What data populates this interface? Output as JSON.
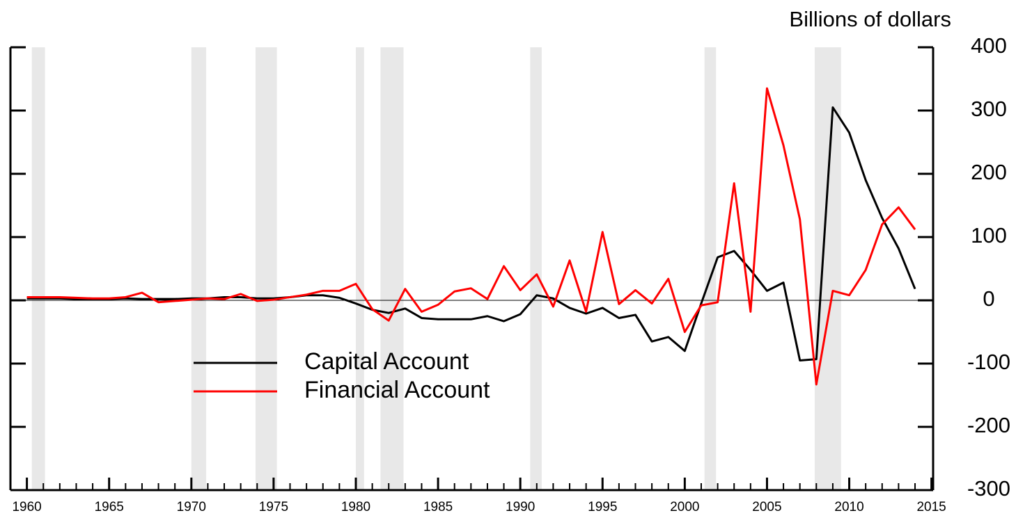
{
  "chart_data": {
    "type": "line",
    "axis_label": "Billions of dollars",
    "x": [
      1960,
      1961,
      1962,
      1963,
      1964,
      1965,
      1966,
      1967,
      1968,
      1969,
      1970,
      1971,
      1972,
      1973,
      1974,
      1975,
      1976,
      1977,
      1978,
      1979,
      1980,
      1981,
      1982,
      1983,
      1984,
      1985,
      1986,
      1987,
      1988,
      1989,
      1990,
      1991,
      1992,
      1993,
      1994,
      1995,
      1996,
      1997,
      1998,
      1999,
      2000,
      2001,
      2002,
      2003,
      2004,
      2005,
      2006,
      2007,
      2008,
      2009,
      2010,
      2011,
      2012,
      2013,
      2014
    ],
    "series": [
      {
        "name": "Capital Account",
        "color": "#000000",
        "values": [
          3,
          3,
          3,
          2,
          2,
          2,
          3,
          2,
          2,
          2,
          3,
          3,
          5,
          5,
          3,
          3,
          5,
          8,
          8,
          4,
          -5,
          -15,
          -20,
          -13,
          -28,
          -30,
          -30,
          -30,
          -25,
          -33,
          -22,
          8,
          3,
          -12,
          -21,
          -12,
          -28,
          -23,
          -65,
          -58,
          -80,
          -5,
          68,
          78,
          48,
          15,
          28,
          -95,
          -93,
          305,
          265,
          190,
          130,
          82,
          18
        ]
      },
      {
        "name": "Financial Account",
        "color": "#ff0000",
        "values": [
          5,
          5,
          5,
          4,
          3,
          3,
          5,
          12,
          -3,
          -1,
          1,
          3,
          2,
          10,
          -1,
          1,
          5,
          9,
          15,
          15,
          26,
          -14,
          -32,
          18,
          -18,
          -7,
          14,
          19,
          2,
          54,
          16,
          41,
          -10,
          63,
          -18,
          108,
          -6,
          16,
          -5,
          34,
          -50,
          -8,
          -3,
          185,
          -18,
          335,
          245,
          128,
          -133,
          15,
          8,
          48,
          120,
          147,
          112
        ]
      }
    ],
    "shaded_periods": [
      [
        1960.3,
        1961.1
      ],
      [
        1970.0,
        1970.9
      ],
      [
        1973.9,
        1975.2
      ],
      [
        1980.0,
        1980.5
      ],
      [
        1981.5,
        1982.9
      ],
      [
        1990.6,
        1991.3
      ],
      [
        2001.2,
        2001.9
      ],
      [
        2007.9,
        2009.5
      ]
    ],
    "shade_color": "#e8e8e8",
    "xlim": [
      1959,
      2015.1
    ],
    "xticks": [
      1960,
      1965,
      1970,
      1975,
      1980,
      1985,
      1990,
      1995,
      2000,
      2005,
      2010,
      2015
    ],
    "xticks_minor": [
      1961,
      1962,
      1963,
      1964,
      1966,
      1967,
      1968,
      1969,
      1971,
      1972,
      1973,
      1974,
      1976,
      1977,
      1978,
      1979,
      1981,
      1982,
      1983,
      1984,
      1986,
      1987,
      1988,
      1989,
      1991,
      1992,
      1993,
      1994,
      1996,
      1997,
      1998,
      1999,
      2001,
      2002,
      2003,
      2004,
      2006,
      2007,
      2008,
      2009,
      2011,
      2012,
      2013,
      2014
    ],
    "ylim": [
      -300,
      400
    ],
    "yticks": [
      -300,
      -200,
      -100,
      0,
      100,
      200,
      300,
      400
    ],
    "zero_line": true
  }
}
